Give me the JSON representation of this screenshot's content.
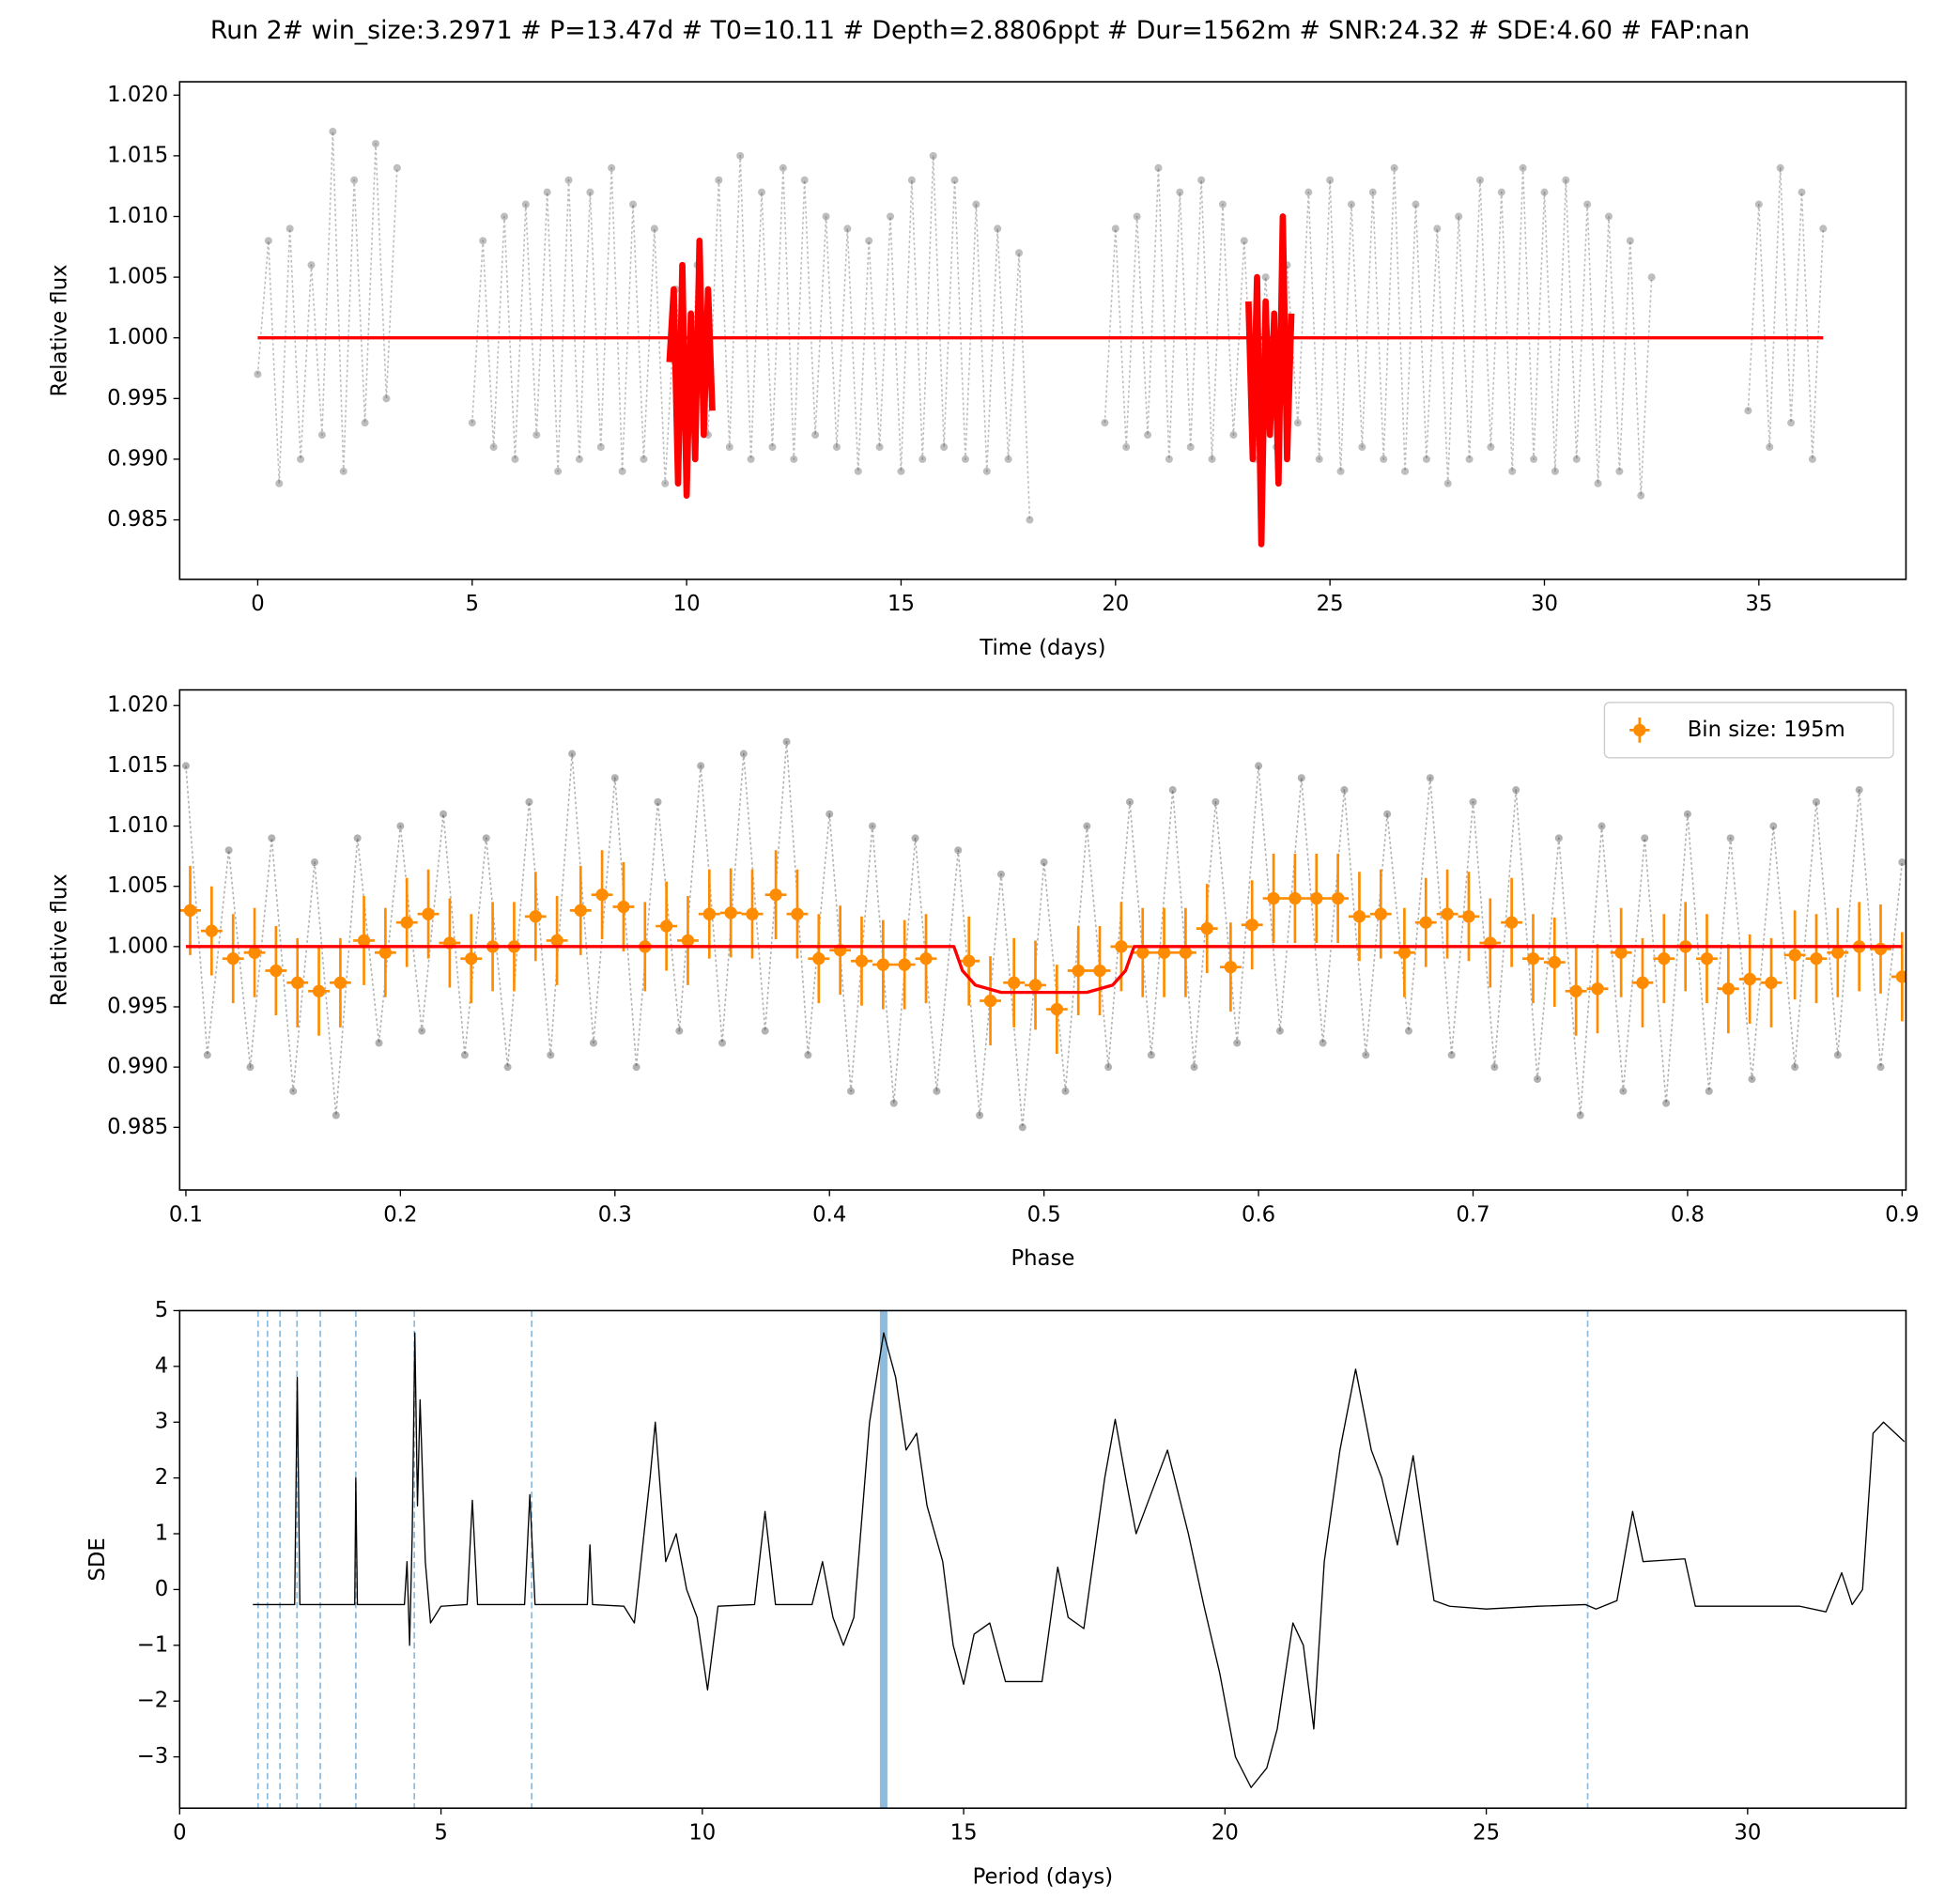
{
  "title": "Run 2# win_size:3.2971 # P=13.47d # T0=10.11 # Depth=2.8806ppt # Dur=1562m # SNR:24.32 # SDE:4.60 # FAP:nan",
  "chart_data": [
    {
      "type": "scatter",
      "xlabel": "Time (days)",
      "ylabel": "Relative flux",
      "xlim": [
        -1.82,
        38.43
      ],
      "ylim": [
        0.9801,
        1.0211
      ],
      "xticks": [
        0,
        5,
        10,
        15,
        20,
        25,
        30,
        35
      ],
      "yticks": [
        0.985,
        {
          "value": 0.99,
          "label": "0.990"
        },
        0.995,
        {
          "value": 1,
          "label": "1.000"
        },
        1.005,
        {
          "value": 1.01,
          "label": "1.010"
        },
        1.015,
        {
          "value": 1.02,
          "label": "1.020"
        }
      ],
      "series": [
        {
          "kind": "points",
          "color": "#444444",
          "alpha": 0.35,
          "x": [
            0,
            0.25,
            0.5,
            0.75,
            1,
            1.25,
            1.5,
            1.75,
            2,
            2.25,
            2.5,
            2.75,
            3,
            3.25,
            4.2,
            5,
            5.25,
            5.5,
            5.75,
            6,
            6.25,
            6.5,
            6.75,
            7,
            7.25,
            7.5,
            7.75,
            8,
            8.25,
            8.5,
            8.75,
            9,
            9.25,
            9.5,
            9.75,
            10,
            10.25,
            10.5,
            10.75,
            11,
            11.25,
            11.5,
            11.75,
            12,
            12.25,
            12.5,
            12.75,
            13,
            13.25,
            13.5,
            13.75,
            14,
            14.25,
            14.5,
            14.75,
            15,
            15.25,
            15.5,
            15.75,
            16,
            16.25,
            16.5,
            16.75,
            17,
            17.25,
            17.5,
            17.75,
            18,
            19,
            19.75,
            20,
            20.25,
            20.5,
            20.75,
            21,
            21.25,
            21.5,
            21.75,
            22,
            22.25,
            22.5,
            22.75,
            23,
            23.25,
            23.5,
            23.75,
            24,
            24.25,
            24.5,
            24.75,
            25,
            25.25,
            25.5,
            25.75,
            26,
            26.25,
            26.5,
            26.75,
            27,
            27.25,
            27.5,
            27.75,
            28,
            28.25,
            28.5,
            28.75,
            29,
            29.25,
            29.5,
            29.75,
            30,
            30.25,
            30.5,
            30.75,
            31,
            31.25,
            31.5,
            31.75,
            32,
            32.25,
            32.5,
            33.7,
            34.75,
            35,
            35.25,
            35.5,
            35.75,
            36,
            36.25,
            36.5
          ],
          "values": [
            0.997,
            1.008,
            0.988,
            1.009,
            0.99,
            1.006,
            0.992,
            1.017,
            0.989,
            1.013,
            0.993,
            1.016,
            0.995,
            1.014,
            null,
            0.993,
            1.008,
            0.991,
            1.01,
            0.99,
            1.011,
            0.992,
            1.012,
            0.989,
            1.013,
            0.99,
            1.012,
            0.991,
            1.014,
            0.989,
            1.011,
            0.99,
            1.009,
            0.988,
            1.004,
            0.99,
            1.006,
            0.992,
            1.013,
            0.991,
            1.015,
            0.99,
            1.012,
            0.991,
            1.014,
            0.99,
            1.013,
            0.992,
            1.01,
            0.991,
            1.009,
            0.989,
            1.008,
            0.991,
            1.01,
            0.989,
            1.013,
            0.99,
            1.015,
            0.991,
            1.013,
            0.99,
            1.011,
            0.989,
            1.009,
            0.99,
            1.007,
            0.985,
            null,
            0.993,
            1.009,
            0.991,
            1.01,
            0.992,
            1.014,
            0.99,
            1.012,
            0.991,
            1.013,
            0.99,
            1.011,
            0.992,
            1.008,
            0.99,
            1.005,
            0.991,
            1.006,
            0.993,
            1.012,
            0.99,
            1.013,
            0.989,
            1.011,
            0.991,
            1.012,
            0.99,
            1.014,
            0.989,
            1.011,
            0.99,
            1.009,
            0.988,
            1.01,
            0.99,
            1.013,
            0.991,
            1.012,
            0.989,
            1.014,
            0.99,
            1.012,
            0.989,
            1.013,
            0.99,
            1.011,
            0.988,
            1.01,
            0.989,
            1.008,
            0.987,
            1.005,
            null,
            0.994,
            1.011,
            0.991,
            1.014,
            0.993,
            1.012,
            0.99,
            1.009
          ]
        },
        {
          "kind": "line",
          "color": "#ff0000",
          "linewidth": 5,
          "x": [
            9.6,
            9.7,
            9.8,
            9.9,
            10,
            10.1,
            10.2,
            10.3,
            10.4,
            10.5,
            10.6,
            16.9,
            23.1,
            23.2,
            23.3,
            23.4,
            23.5,
            23.6,
            23.7,
            23.8,
            23.9,
            24,
            24.1
          ],
          "values": [
            0.998,
            1.004,
            0.988,
            1.006,
            0.987,
            1.002,
            0.99,
            1.008,
            0.992,
            1.004,
            0.994,
            null,
            1.003,
            0.99,
            1.005,
            0.983,
            1.003,
            0.992,
            1.002,
            0.988,
            1.01,
            0.99,
            1.002
          ]
        },
        {
          "kind": "line",
          "color": "#ff0000",
          "linewidth": 2.5,
          "x": [
            0,
            36.5
          ],
          "values": [
            1,
            1
          ]
        }
      ]
    },
    {
      "type": "scatter",
      "xlabel": "Phase",
      "ylabel": "Relative flux",
      "legend": "upper right",
      "xlim": [
        0.0971,
        0.9018
      ],
      "ylim": [
        0.9798,
        1.0213
      ],
      "xticks": [
        0.1,
        0.2,
        0.3,
        0.4,
        0.5,
        0.6,
        0.7,
        0.8,
        0.9
      ],
      "yticks": [
        0.985,
        {
          "value": 0.99,
          "label": "0.990"
        },
        0.995,
        {
          "value": 1,
          "label": "1.000"
        },
        1.005,
        {
          "value": 1.01,
          "label": "1.010"
        },
        1.015,
        {
          "value": 1.02,
          "label": "1.020"
        }
      ],
      "yerr": 0.0037,
      "xerr": 0.005,
      "series": [
        {
          "kind": "points",
          "color": "#222222",
          "alpha": 0.35,
          "x": [
            0.1,
            0.11,
            0.12,
            0.13,
            0.14,
            0.15,
            0.16,
            0.17,
            0.18,
            0.19,
            0.2,
            0.21,
            0.22,
            0.23,
            0.24,
            0.25,
            0.26,
            0.27,
            0.28,
            0.29,
            0.3,
            0.31,
            0.32,
            0.33,
            0.34,
            0.35,
            0.36,
            0.37,
            0.38,
            0.39,
            0.4,
            0.41,
            0.42,
            0.43,
            0.44,
            0.45,
            0.46,
            0.47,
            0.48,
            0.49,
            0.5,
            0.51,
            0.52,
            0.53,
            0.54,
            0.55,
            0.56,
            0.57,
            0.58,
            0.59,
            0.6,
            0.61,
            0.62,
            0.63,
            0.64,
            0.65,
            0.66,
            0.67,
            0.68,
            0.69,
            0.7,
            0.71,
            0.72,
            0.73,
            0.74,
            0.75,
            0.76,
            0.77,
            0.78,
            0.79,
            0.8,
            0.81,
            0.82,
            0.83,
            0.84,
            0.85,
            0.86,
            0.87,
            0.88,
            0.89,
            0.9
          ],
          "values": [
            1.015,
            0.991,
            1.008,
            0.99,
            1.009,
            0.988,
            1.007,
            0.986,
            1.009,
            0.992,
            1.01,
            0.993,
            1.011,
            0.991,
            1.009,
            0.99,
            1.012,
            0.991,
            1.016,
            0.992,
            1.014,
            0.99,
            1.012,
            0.993,
            1.015,
            0.992,
            1.016,
            0.993,
            1.017,
            0.991,
            1.011,
            0.988,
            1.01,
            0.987,
            1.009,
            0.988,
            1.008,
            0.986,
            1.006,
            0.985,
            1.007,
            0.988,
            1.01,
            0.99,
            1.012,
            0.991,
            1.013,
            0.99,
            1.012,
            0.992,
            1.015,
            0.993,
            1.014,
            0.992,
            1.013,
            0.991,
            1.011,
            0.993,
            1.014,
            0.991,
            1.012,
            0.99,
            1.013,
            0.989,
            1.009,
            0.986,
            1.01,
            0.988,
            1.009,
            0.987,
            1.011,
            0.988,
            1.009,
            0.989,
            1.01,
            0.99,
            1.012,
            0.991,
            1.013,
            0.99,
            1.007
          ]
        },
        {
          "kind": "errorbar",
          "name": "Bin size: 195m",
          "color": "#ff8c00",
          "x": [
            0.102,
            0.112,
            0.122,
            0.132,
            0.142,
            0.152,
            0.162,
            0.172,
            0.183,
            0.193,
            0.203,
            0.213,
            0.223,
            0.233,
            0.243,
            0.253,
            0.263,
            0.273,
            0.284,
            0.294,
            0.304,
            0.314,
            0.324,
            0.334,
            0.344,
            0.354,
            0.364,
            0.375,
            0.385,
            0.395,
            0.405,
            0.415,
            0.425,
            0.435,
            0.445,
            0.465,
            0.475,
            0.486,
            0.496,
            0.506,
            0.516,
            0.526,
            0.536,
            0.546,
            0.556,
            0.566,
            0.576,
            0.587,
            0.597,
            0.607,
            0.617,
            0.627,
            0.637,
            0.647,
            0.657,
            0.668,
            0.678,
            0.688,
            0.698,
            0.708,
            0.718,
            0.728,
            0.738,
            0.748,
            0.758,
            0.769,
            0.779,
            0.789,
            0.799,
            0.809,
            0.819,
            0.829,
            0.839,
            0.85,
            0.86,
            0.87,
            0.88,
            0.89,
            0.9
          ],
          "values": [
            1.003,
            1.0013,
            0.999,
            0.9995,
            0.998,
            0.997,
            0.9963,
            0.997,
            1.0005,
            0.9995,
            1.002,
            1.0027,
            1.0003,
            0.999,
            1,
            1,
            1.0025,
            1.0005,
            1.003,
            1.0043,
            1.0033,
            1,
            1.0017,
            1.0005,
            1.0027,
            1.0028,
            1.0027,
            1.0043,
            1.0027,
            0.999,
            0.9997,
            0.9988,
            0.9985,
            0.9985,
            0.999,
            0.9988,
            0.9955,
            0.997,
            0.9968,
            0.9948,
            0.998,
            0.998,
            1,
            0.9995,
            0.9995,
            0.9995,
            1.0015,
            0.9983,
            1.0018,
            1.004,
            1.004,
            1.004,
            1.004,
            1.0025,
            1.0027,
            0.9995,
            1.002,
            1.0027,
            1.0025,
            1.0003,
            1.002,
            0.999,
            0.9987,
            0.9963,
            0.9965,
            0.9995,
            0.997,
            0.999,
            1,
            0.999,
            0.9965,
            0.9973,
            0.997,
            0.9993,
            0.999,
            0.9995,
            1,
            0.9998,
            0.9975
          ]
        },
        {
          "kind": "line",
          "color": "#ff0000",
          "linewidth": 2.5,
          "x": [
            0.1,
            0.458,
            0.462,
            0.468,
            0.48,
            0.52,
            0.532,
            0.538,
            0.542,
            0.9
          ],
          "values": [
            1,
            1,
            0.998,
            0.9968,
            0.9962,
            0.9962,
            0.9968,
            0.998,
            1,
            1
          ]
        }
      ]
    },
    {
      "type": "line",
      "xlabel": "Period (days)",
      "ylabel": "SDE",
      "xlim": [
        0,
        33.03
      ],
      "ylim": [
        -3.92,
        5
      ],
      "xticks": [
        0,
        5,
        10,
        15,
        20,
        25,
        30
      ],
      "yticks": [
        {
          "value": -3,
          "label": "−3"
        },
        {
          "value": -2,
          "label": "−2"
        },
        {
          "value": -1,
          "label": "−1"
        },
        0,
        1,
        2,
        3,
        4,
        5
      ],
      "harmonics": [
        1.5,
        1.68,
        1.92,
        2.245,
        2.69,
        3.37,
        4.49,
        6.735,
        26.94
      ],
      "period": 13.47,
      "vline_color": "#8fbbdd",
      "x": [
        1.4,
        2.2,
        2.25,
        2.3,
        3.35,
        3.37,
        3.4,
        4.3,
        4.35,
        4.4,
        4.45,
        4.5,
        4.55,
        4.6,
        4.7,
        4.8,
        5,
        5.5,
        5.6,
        5.7,
        6.6,
        6.7,
        6.8,
        7.8,
        7.85,
        7.9,
        8.5,
        8.7,
        9,
        9.1,
        9.3,
        9.5,
        9.7,
        9.9,
        10.1,
        10.3,
        11,
        11.2,
        11.4,
        12.1,
        12.3,
        12.5,
        12.7,
        12.9,
        13.2,
        13.47,
        13.7,
        13.9,
        14.1,
        14.3,
        14.6,
        14.8,
        15,
        15.2,
        15.5,
        15.8,
        16.5,
        16.8,
        17,
        17.3,
        17.7,
        17.9,
        18.1,
        18.3,
        18.5,
        18.9,
        19.3,
        19.6,
        19.9,
        20.2,
        20.5,
        20.8,
        21,
        21.3,
        21.5,
        21.7,
        21.9,
        22.2,
        22.5,
        22.8,
        23,
        23.3,
        23.6,
        24,
        24.3,
        25,
        26,
        26.9,
        27.1,
        27.5,
        27.8,
        28,
        28.8,
        29,
        30,
        31,
        31.5,
        31.8,
        32,
        32.2,
        32.4,
        32.6,
        33
      ],
      "series": [
        {
          "kind": "line",
          "color": "#000000",
          "linewidth": 1,
          "values": [
            -0.27,
            -0.27,
            3.8,
            -0.27,
            -0.27,
            2,
            -0.27,
            -0.27,
            0.5,
            -1,
            1,
            4.6,
            1.5,
            3.4,
            0.5,
            -0.6,
            -0.3,
            -0.27,
            1.6,
            -0.27,
            -0.27,
            1.7,
            -0.27,
            -0.27,
            0.8,
            -0.27,
            -0.3,
            -0.6,
            2,
            3,
            0.5,
            1,
            0,
            -0.5,
            -1.8,
            -0.3,
            -0.27,
            1.4,
            -0.27,
            -0.27,
            0.5,
            -0.5,
            -1,
            -0.5,
            3,
            4.6,
            3.8,
            2.5,
            2.8,
            1.5,
            0.5,
            -1,
            -1.7,
            -0.8,
            -0.6,
            -1.65,
            -1.65,
            0.4,
            -0.5,
            -0.7,
            2,
            3.05,
            2,
            1,
            1.5,
            2.5,
            1,
            -0.3,
            -1.5,
            -3,
            -3.55,
            -3.2,
            -2.5,
            -0.6,
            -1,
            -2.5,
            0.5,
            2.5,
            3.95,
            2.5,
            2,
            0.8,
            2.4,
            -0.2,
            -0.3,
            -0.35,
            -0.3,
            -0.27,
            -0.35,
            -0.2,
            1.4,
            0.5,
            0.55,
            -0.3,
            -0.3,
            -0.3,
            -0.4,
            0.3,
            -0.27,
            0,
            2.8,
            3,
            2.65
          ]
        }
      ]
    }
  ]
}
